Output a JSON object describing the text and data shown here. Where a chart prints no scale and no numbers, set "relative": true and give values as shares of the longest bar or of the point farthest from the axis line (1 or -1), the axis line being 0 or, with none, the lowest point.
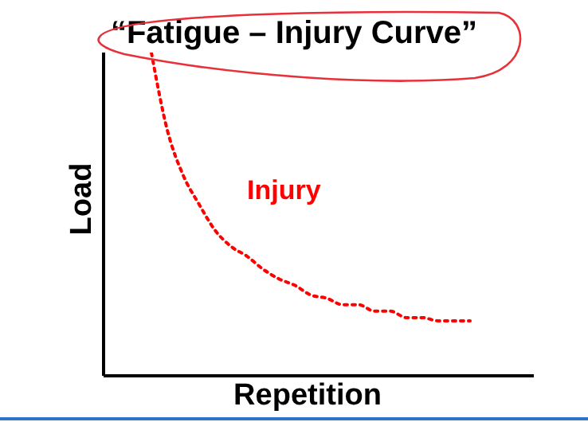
{
  "chart_data": {
    "type": "line",
    "title": "“Fatigue – Injury Curve”",
    "xlabel": "Repetition",
    "ylabel": "Load",
    "annotations": [
      "Injury"
    ],
    "relative": true,
    "categories": [
      null,
      null,
      null,
      null,
      null,
      null,
      null,
      null,
      null,
      null,
      null,
      null,
      null,
      null,
      null,
      null,
      null,
      null,
      null,
      null,
      null,
      null,
      null,
      null,
      null,
      null,
      null,
      null
    ],
    "series": [
      {
        "color": "#ff0000",
        "values": [
          null,
          null,
          null,
          1,
          0.76,
          0.62,
          0.53,
          0.45,
          0.4,
          0.37,
          0.33,
          0.3,
          0.28,
          0.25,
          0.24,
          0.22,
          0.22,
          0.2,
          0.2,
          0.18,
          0.18,
          0.17,
          0.17,
          0.17,
          null,
          null,
          null,
          null
        ]
      }
    ],
    "legend": false,
    "grid": false,
    "marker": "none",
    "line_style": "dotted"
  }
}
